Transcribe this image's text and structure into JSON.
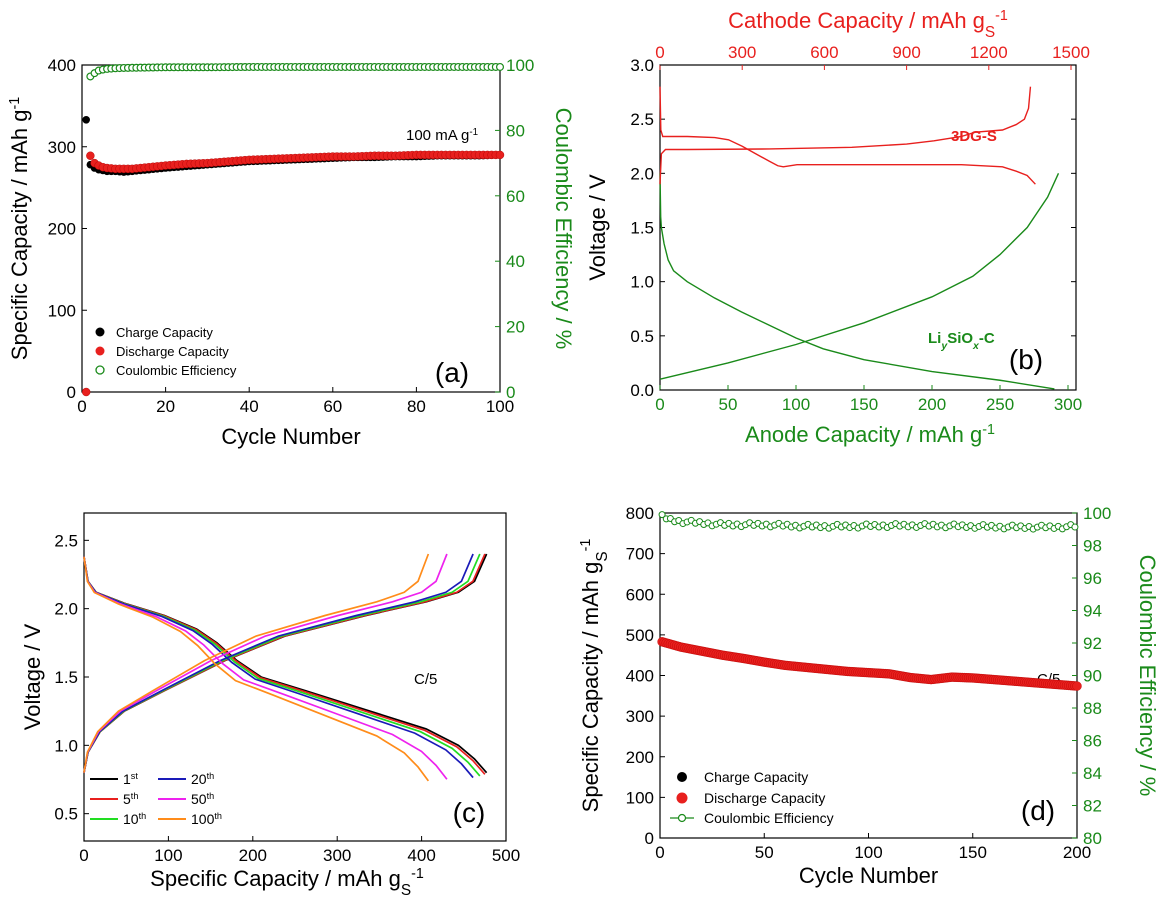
{
  "chart_data": [
    {
      "panel": "(a)",
      "type": "scatter",
      "xlabel": "Cycle Number",
      "ylabel": "Specific Capacity / mAh g",
      "ylabel_sup": "-1",
      "y2label": "Coulombic Efficiency / %",
      "xlim": [
        0,
        100
      ],
      "ylim": [
        0,
        400
      ],
      "y2lim": [
        0,
        100
      ],
      "xticks": [
        0,
        20,
        40,
        60,
        80,
        100
      ],
      "yticks": [
        0,
        100,
        200,
        300,
        400
      ],
      "y2ticks": [
        0,
        20,
        40,
        60,
        80,
        100
      ],
      "annotation": "100 mA g",
      "annotation_sup": "-1",
      "legend": [
        "Charge Capacity",
        "Discharge Capacity",
        "Coulombic Efficiency"
      ],
      "legend_position": "bottom-left",
      "colors": {
        "charge": "#000000",
        "discharge": "#e8201e",
        "ce": "#1a8a1a",
        "y2axis": "#1a8a1a"
      },
      "series": [
        {
          "name": "Charge Capacity",
          "axis": "left",
          "points": [
            [
              1,
              333
            ],
            [
              2,
              278
            ],
            [
              3,
              274
            ],
            [
              4,
              272
            ],
            [
              5,
              271
            ],
            [
              6,
              270
            ],
            [
              8,
              270
            ],
            [
              10,
              269
            ],
            [
              12,
              270
            ],
            [
              14,
              271
            ],
            [
              16,
              272
            ],
            [
              18,
              273
            ],
            [
              20,
              274
            ],
            [
              25,
              276
            ],
            [
              30,
              278
            ],
            [
              35,
              280
            ],
            [
              40,
              282
            ],
            [
              45,
              283
            ],
            [
              50,
              284
            ],
            [
              55,
              285
            ],
            [
              60,
              286
            ],
            [
              65,
              287
            ],
            [
              70,
              287
            ],
            [
              75,
              288
            ],
            [
              80,
              288
            ],
            [
              85,
              289
            ],
            [
              90,
              289
            ],
            [
              95,
              289
            ],
            [
              100,
              290
            ]
          ]
        },
        {
          "name": "Discharge Capacity",
          "axis": "left",
          "points": [
            [
              1,
              0
            ],
            [
              2,
              289
            ],
            [
              3,
              280
            ],
            [
              4,
              277
            ],
            [
              5,
              275
            ],
            [
              6,
              274
            ],
            [
              8,
              273
            ],
            [
              10,
              273
            ],
            [
              12,
              273
            ],
            [
              14,
              274
            ],
            [
              16,
              275
            ],
            [
              18,
              276
            ],
            [
              20,
              277
            ],
            [
              25,
              279
            ],
            [
              30,
              280
            ],
            [
              35,
              282
            ],
            [
              40,
              284
            ],
            [
              45,
              285
            ],
            [
              50,
              286
            ],
            [
              55,
              287
            ],
            [
              60,
              288
            ],
            [
              65,
              288
            ],
            [
              70,
              289
            ],
            [
              75,
              289
            ],
            [
              80,
              290
            ],
            [
              85,
              290
            ],
            [
              90,
              290
            ],
            [
              95,
              290
            ],
            [
              100,
              290
            ]
          ]
        },
        {
          "name": "Coulombic Efficiency",
          "axis": "right",
          "points": [
            [
              2,
              96.5
            ],
            [
              3,
              97.5
            ],
            [
              4,
              98.3
            ],
            [
              5,
              98.6
            ],
            [
              6,
              98.8
            ],
            [
              8,
              99.0
            ],
            [
              10,
              99.1
            ],
            [
              15,
              99.2
            ],
            [
              20,
              99.3
            ],
            [
              30,
              99.3
            ],
            [
              40,
              99.4
            ],
            [
              50,
              99.4
            ],
            [
              60,
              99.4
            ],
            [
              70,
              99.4
            ],
            [
              80,
              99.4
            ],
            [
              90,
              99.4
            ],
            [
              100,
              99.4
            ]
          ]
        }
      ]
    },
    {
      "panel": "(b)",
      "type": "line",
      "xlabel": "Anode Capacity / mAh g",
      "xlabel_sup": "-1",
      "ylabel": "Voltage / V",
      "x2label": "Cathode Capacity / mAh g",
      "x2label_sub": "S",
      "x2label_sup": "-1",
      "xlim": [
        0,
        300
      ],
      "ylim": [
        0,
        3.0
      ],
      "x2lim": [
        0,
        1500
      ],
      "xticks": [
        0,
        50,
        100,
        150,
        200,
        250,
        300
      ],
      "yticks": [
        0.0,
        0.5,
        1.0,
        1.5,
        2.0,
        2.5,
        3.0
      ],
      "x2ticks": [
        0,
        300,
        600,
        900,
        1200,
        1500
      ],
      "label_cathode": "3DG-S",
      "label_anode_parts": [
        "Li",
        "y",
        "SiO",
        "x",
        "-C"
      ],
      "colors": {
        "cathode": "#e8201e",
        "anode": "#1a8a1a"
      },
      "series": [
        {
          "name": "3DG-S discharge",
          "axis": "top",
          "points": [
            [
              0,
              2.8
            ],
            [
              3,
              2.4
            ],
            [
              10,
              2.34
            ],
            [
              100,
              2.34
            ],
            [
              200,
              2.33
            ],
            [
              250,
              2.31
            ],
            [
              300,
              2.25
            ],
            [
              350,
              2.18
            ],
            [
              400,
              2.11
            ],
            [
              430,
              2.07
            ],
            [
              450,
              2.06
            ],
            [
              500,
              2.08
            ],
            [
              800,
              2.08
            ],
            [
              1100,
              2.08
            ],
            [
              1250,
              2.06
            ],
            [
              1300,
              2.02
            ],
            [
              1340,
              1.98
            ],
            [
              1370,
              1.9
            ]
          ]
        },
        {
          "name": "3DG-S charge",
          "axis": "top",
          "points": [
            [
              0,
              1.9
            ],
            [
              5,
              2.18
            ],
            [
              20,
              2.22
            ],
            [
              100,
              2.22
            ],
            [
              400,
              2.225
            ],
            [
              700,
              2.24
            ],
            [
              900,
              2.27
            ],
            [
              1000,
              2.3
            ],
            [
              1100,
              2.34
            ],
            [
              1150,
              2.38
            ],
            [
              1250,
              2.4
            ],
            [
              1300,
              2.45
            ],
            [
              1330,
              2.5
            ],
            [
              1345,
              2.6
            ],
            [
              1352,
              2.8
            ]
          ]
        },
        {
          "name": "LiySiOx-C charge",
          "axis": "bottom",
          "points": [
            [
              0,
              2.0
            ],
            [
              0.5,
              1.6
            ],
            [
              1,
              1.5
            ],
            [
              3,
              1.35
            ],
            [
              6,
              1.2
            ],
            [
              10,
              1.1
            ],
            [
              20,
              1.0
            ],
            [
              40,
              0.85
            ],
            [
              60,
              0.72
            ],
            [
              80,
              0.6
            ],
            [
              100,
              0.48
            ],
            [
              120,
              0.38
            ],
            [
              150,
              0.28
            ],
            [
              200,
              0.17
            ],
            [
              250,
              0.09
            ],
            [
              290,
              0.01
            ]
          ]
        },
        {
          "name": "LiySiOx-C discharge",
          "axis": "bottom",
          "points": [
            [
              0,
              0.1
            ],
            [
              50,
              0.25
            ],
            [
              100,
              0.42
            ],
            [
              150,
              0.62
            ],
            [
              200,
              0.86
            ],
            [
              230,
              1.05
            ],
            [
              250,
              1.25
            ],
            [
              270,
              1.5
            ],
            [
              285,
              1.78
            ],
            [
              293,
              2.0
            ]
          ]
        }
      ]
    },
    {
      "panel": "(c)",
      "type": "line",
      "xlabel": "Specific Capacity / mAh g",
      "xlabel_sub": "S",
      "xlabel_sup": "-1",
      "ylabel": "Voltage / V",
      "xlim": [
        0,
        500
      ],
      "ylim": [
        0.3,
        2.7
      ],
      "xticks": [
        0,
        100,
        200,
        300,
        400,
        500
      ],
      "yticks": [
        0.5,
        1.0,
        1.5,
        2.0,
        2.5
      ],
      "annotation": "C/5",
      "legend_position": "bottom-left",
      "series": [
        {
          "name": "1",
          "sup": "st",
          "color": "#000000",
          "capacity": 477
        },
        {
          "name": "5",
          "sup": "th",
          "color": "#e8201e",
          "capacity": 475
        },
        {
          "name": "10",
          "sup": "th",
          "color": "#22dd22",
          "capacity": 469
        },
        {
          "name": "20",
          "sup": "th",
          "color": "#1a1ab8",
          "capacity": 461
        },
        {
          "name": "50",
          "sup": "th",
          "color": "#ee22ee",
          "capacity": 430
        },
        {
          "name": "100",
          "sup": "th",
          "color": "#ff8c1a",
          "capacity": 408
        }
      ],
      "discharge_profile": [
        [
          0,
          2.38
        ],
        [
          0.01,
          2.2
        ],
        [
          0.03,
          2.12
        ],
        [
          0.1,
          2.04
        ],
        [
          0.2,
          1.95
        ],
        [
          0.28,
          1.85
        ],
        [
          0.33,
          1.75
        ],
        [
          0.38,
          1.62
        ],
        [
          0.44,
          1.5
        ],
        [
          0.55,
          1.4
        ],
        [
          0.7,
          1.26
        ],
        [
          0.85,
          1.12
        ],
        [
          0.93,
          1.0
        ],
        [
          0.97,
          0.9
        ],
        [
          1.0,
          0.8
        ]
      ],
      "charge_profile": [
        [
          0,
          0.8
        ],
        [
          0.01,
          0.95
        ],
        [
          0.04,
          1.1
        ],
        [
          0.1,
          1.25
        ],
        [
          0.2,
          1.4
        ],
        [
          0.35,
          1.62
        ],
        [
          0.5,
          1.8
        ],
        [
          0.7,
          1.95
        ],
        [
          0.85,
          2.05
        ],
        [
          0.93,
          2.12
        ],
        [
          0.97,
          2.2
        ],
        [
          1.0,
          2.4
        ]
      ]
    },
    {
      "panel": "(d)",
      "type": "scatter",
      "xlabel": "Cycle Number",
      "ylabel": "Specific Capacity / mAh g",
      "ylabel_sub": "S",
      "ylabel_sup": "-1",
      "y2label": "Coulombic Efficiency / %",
      "xlim": [
        0,
        200
      ],
      "ylim": [
        0,
        800
      ],
      "y2lim": [
        80,
        100
      ],
      "xticks": [
        0,
        50,
        100,
        150,
        200
      ],
      "yticks": [
        0,
        100,
        200,
        300,
        400,
        500,
        600,
        700,
        800
      ],
      "y2ticks": [
        80,
        82,
        84,
        86,
        88,
        90,
        92,
        94,
        96,
        98,
        100
      ],
      "annotation": "C/5",
      "legend": [
        "Charge Capacity",
        "Discharge Capacity",
        "Coulombic Efficiency"
      ],
      "legend_position": "bottom-left",
      "colors": {
        "charge": "#000000",
        "discharge": "#e8201e",
        "ce": "#1a8a1a",
        "y2axis": "#1a8a1a"
      },
      "series": [
        {
          "name": "Discharge Capacity",
          "axis": "left",
          "points": [
            [
              1,
              483
            ],
            [
              10,
              470
            ],
            [
              20,
              460
            ],
            [
              30,
              450
            ],
            [
              40,
              442
            ],
            [
              50,
              433
            ],
            [
              60,
              425
            ],
            [
              70,
              420
            ],
            [
              80,
              415
            ],
            [
              90,
              410
            ],
            [
              100,
              407
            ],
            [
              110,
              404
            ],
            [
              120,
              395
            ],
            [
              130,
              390
            ],
            [
              140,
              396
            ],
            [
              150,
              394
            ],
            [
              160,
              390
            ],
            [
              170,
              386
            ],
            [
              180,
              382
            ],
            [
              190,
              378
            ],
            [
              200,
              374
            ]
          ]
        },
        {
          "name": "Coulombic Efficiency",
          "axis": "right",
          "points": [
            [
              1,
              99.9
            ],
            [
              5,
              99.7
            ],
            [
              10,
              99.6
            ],
            [
              20,
              99.5
            ],
            [
              30,
              99.4
            ],
            [
              50,
              99.4
            ],
            [
              70,
              99.3
            ],
            [
              90,
              99.3
            ],
            [
              110,
              99.35
            ],
            [
              130,
              99.35
            ],
            [
              150,
              99.3
            ],
            [
              170,
              99.25
            ],
            [
              190,
              99.25
            ],
            [
              200,
              99.3
            ]
          ]
        }
      ]
    }
  ]
}
